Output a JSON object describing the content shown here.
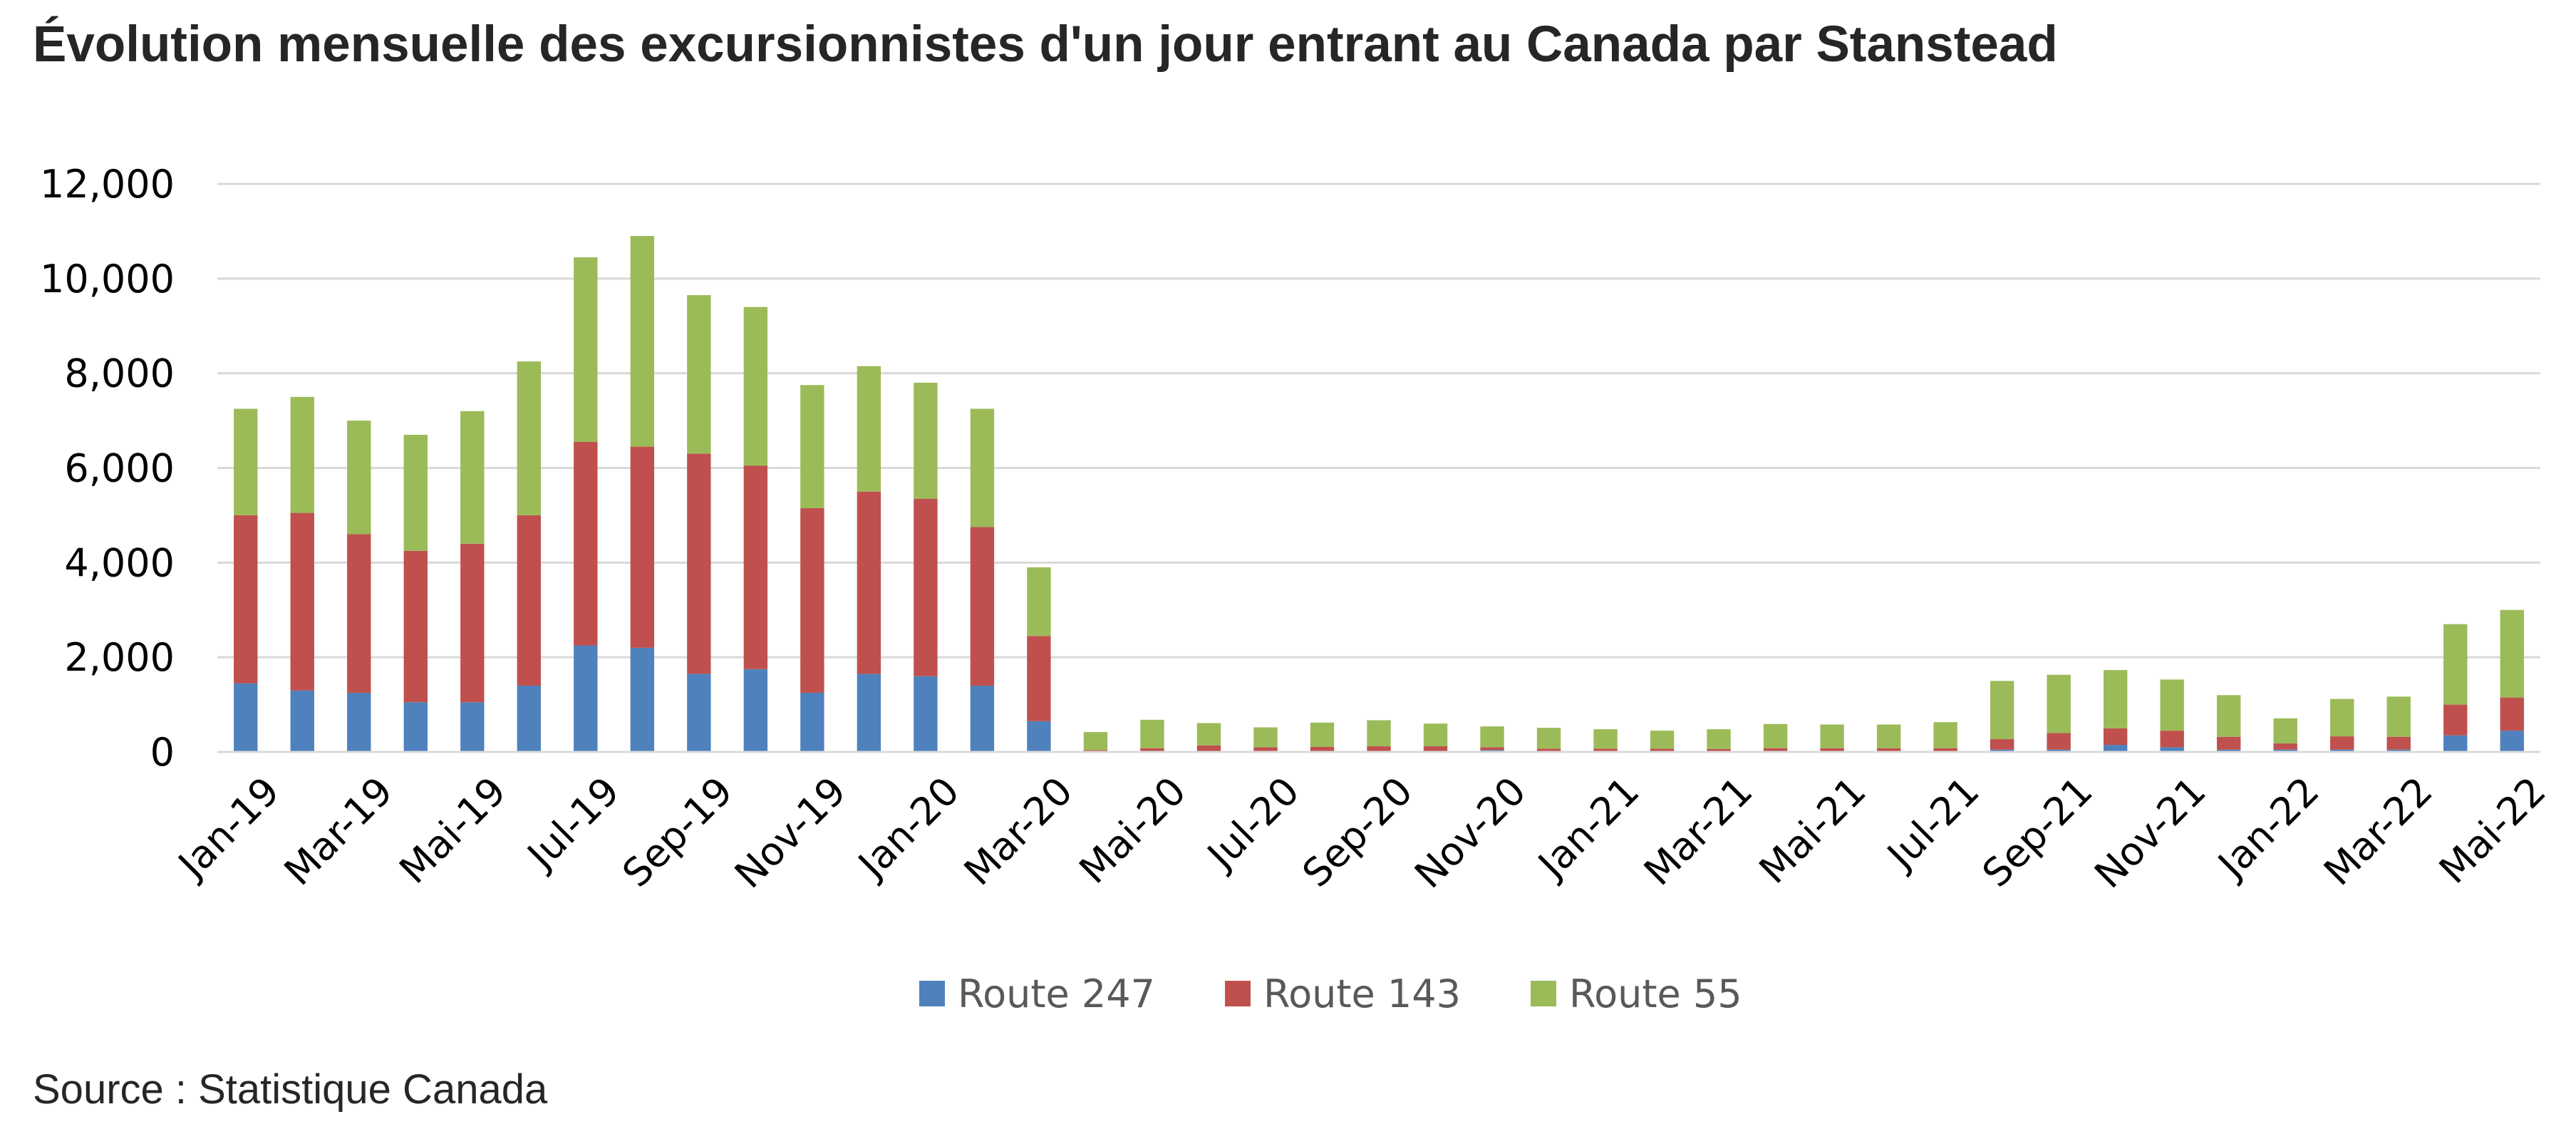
{
  "title": "Évolution mensuelle des excursionnistes d'un jour entrant au Canada par Stanstead",
  "source": "Source : Statistique Canada",
  "chart_data": {
    "type": "bar",
    "stacked": true,
    "title": "Évolution mensuelle des excursionnistes d'un jour entrant au Canada par Stanstead",
    "xlabel": "",
    "ylabel": "",
    "ylim": [
      0,
      12000
    ],
    "yticks": [
      0,
      2000,
      4000,
      6000,
      8000,
      10000,
      12000
    ],
    "ytick_labels": [
      "0",
      "2,000",
      "4,000",
      "6,000",
      "8,000",
      "10,000",
      "12,000"
    ],
    "grid": true,
    "legend_position": "bottom",
    "categories": [
      "Jan-19",
      "Feb-19",
      "Mar-19",
      "Apr-19",
      "Mai-19",
      "Jun-19",
      "Jul-19",
      "Aug-19",
      "Sep-19",
      "Oct-19",
      "Nov-19",
      "Dec-19",
      "Jan-20",
      "Feb-20",
      "Mar-20",
      "Apr-20",
      "Mai-20",
      "Jun-20",
      "Jul-20",
      "Aug-20",
      "Sep-20",
      "Oct-20",
      "Nov-20",
      "Dec-20",
      "Jan-21",
      "Feb-21",
      "Mar-21",
      "Apr-21",
      "Mai-21",
      "Jun-21",
      "Jul-21",
      "Aug-21",
      "Sep-21",
      "Oct-21",
      "Nov-21",
      "Dec-21",
      "Jan-22",
      "Feb-22",
      "Mar-22",
      "Apr-22",
      "Mai-22"
    ],
    "x_tick_labels": [
      "Jan-19",
      "Mar-19",
      "Mai-19",
      "Jul-19",
      "Sep-19",
      "Nov-19",
      "Jan-20",
      "Mar-20",
      "Mai-20",
      "Jul-20",
      "Sep-20",
      "Nov-20",
      "Jan-21",
      "Mar-21",
      "Mai-21",
      "Jul-21",
      "Sep-21",
      "Nov-21",
      "Jan-22",
      "Mar-22",
      "Mai-22"
    ],
    "series": [
      {
        "name": "Route 247",
        "color": "#4F81BD",
        "values": [
          1450,
          1300,
          1250,
          1050,
          1050,
          1400,
          2250,
          2200,
          1650,
          1750,
          1250,
          1650,
          1600,
          1400,
          650,
          20,
          20,
          20,
          20,
          20,
          20,
          20,
          40,
          20,
          20,
          20,
          20,
          20,
          20,
          20,
          20,
          50,
          50,
          150,
          100,
          50,
          50,
          50,
          50,
          350,
          450
        ]
      },
      {
        "name": "Route 143",
        "color": "#C0504D",
        "values": [
          3550,
          3750,
          3350,
          3200,
          3350,
          3600,
          4300,
          4250,
          4650,
          4300,
          3900,
          3850,
          3750,
          3350,
          1800,
          20,
          60,
          120,
          80,
          90,
          100,
          100,
          60,
          50,
          50,
          50,
          40,
          60,
          60,
          60,
          60,
          220,
          350,
          350,
          350,
          270,
          130,
          280,
          270,
          650,
          700
        ]
      },
      {
        "name": "Route 55",
        "color": "#9BBB59",
        "values": [
          2250,
          2450,
          2400,
          2450,
          2800,
          3250,
          3900,
          4450,
          3350,
          3350,
          2600,
          2650,
          2450,
          2500,
          1450,
          380,
          600,
          470,
          420,
          510,
          550,
          480,
          440,
          440,
          410,
          380,
          420,
          510,
          500,
          500,
          550,
          1230,
          1230,
          1230,
          1080,
          880,
          530,
          790,
          850,
          1700,
          1850
        ]
      }
    ]
  }
}
